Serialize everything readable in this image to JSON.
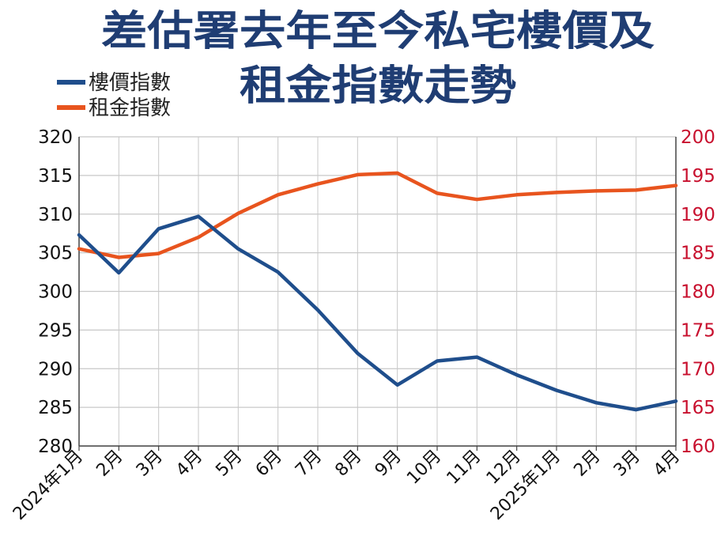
{
  "title_lines": [
    "差估署去年至今私宅樓價及",
    "租金指數走勢"
  ],
  "colors": {
    "title": "#1f3d73",
    "price_series": "#1f4e8c",
    "rent_series": "#e8541e",
    "right_axis": "#c8102e",
    "grid": "#c8c8c8",
    "axis": "#444444"
  },
  "chart_data": {
    "type": "line",
    "title": "差估署去年至今私宅樓價及租金指數走勢",
    "categories": [
      "2024年1月",
      "2月",
      "3月",
      "4月",
      "5月",
      "6月",
      "7月",
      "8月",
      "9月",
      "10月",
      "11月",
      "12月",
      "2025年1月",
      "2月",
      "3月",
      "4月"
    ],
    "y_left": {
      "min": 280,
      "max": 320,
      "step": 5,
      "ticks": [
        "320",
        "315",
        "310",
        "305",
        "300",
        "295",
        "290",
        "285",
        "280"
      ]
    },
    "y_right": {
      "min": 160,
      "max": 200,
      "step": 5,
      "ticks": [
        "200",
        "195",
        "190",
        "185",
        "180",
        "175",
        "170",
        "165",
        "160"
      ]
    },
    "grid": true,
    "legend_position": "top-left",
    "series": [
      {
        "name": "樓價指數",
        "axis": "left",
        "color": "#1f4e8c",
        "values": [
          307.3,
          302.4,
          308.1,
          309.7,
          305.5,
          302.5,
          297.6,
          292.0,
          287.9,
          291.0,
          291.5,
          289.2,
          287.2,
          285.6,
          284.7,
          285.8
        ]
      },
      {
        "name": "租金指數",
        "axis": "right",
        "color": "#e8541e",
        "values": [
          185.5,
          184.4,
          184.9,
          187.0,
          190.1,
          192.5,
          193.9,
          195.1,
          195.3,
          192.7,
          191.9,
          192.5,
          192.8,
          193.0,
          193.1,
          193.7
        ]
      }
    ]
  }
}
